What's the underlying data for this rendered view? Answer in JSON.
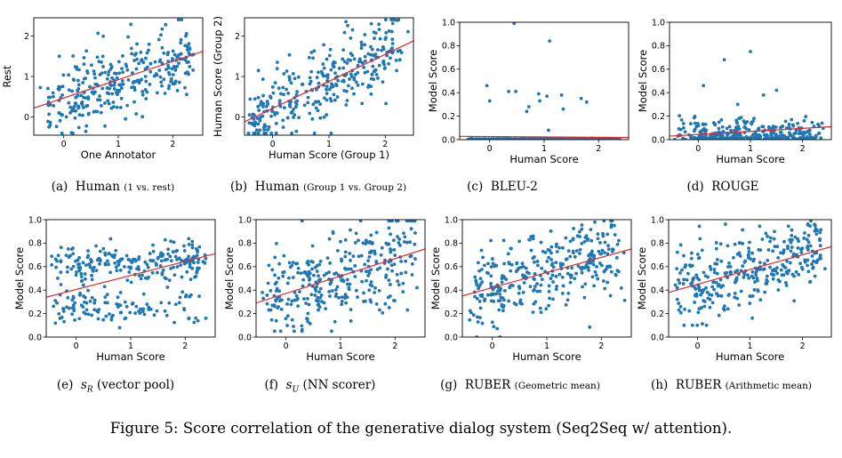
{
  "caption": "Figure 5: Score correlation of the generative dialog system (Seq2Seq w/ attention).",
  "chart_data": [
    {
      "type": "scatter",
      "id": "a",
      "caption_letter": "(a)",
      "caption_main": "Human",
      "caption_small": "(1 vs. rest)",
      "xlabel": "One Annotator",
      "ylabel": "Rest",
      "xlim": [
        -0.55,
        2.55
      ],
      "ylim": [
        -0.45,
        2.45
      ],
      "xticks": [
        0,
        1,
        2
      ],
      "yticks": [
        0,
        1,
        2
      ],
      "ytick_labels": [
        "0",
        "1",
        "2"
      ],
      "fit": [
        [
          -0.55,
          0.22
        ],
        [
          2.55,
          1.62
        ]
      ],
      "n": 320,
      "seed": 11,
      "gen": "human"
    },
    {
      "type": "scatter",
      "id": "b",
      "caption_letter": "(b)",
      "caption_main": "Human",
      "caption_small": "(Group 1 vs. Group 2)",
      "xlabel": "Human Score (Group 1)",
      "ylabel": "Human Score (Group 2)",
      "xlim": [
        -0.5,
        2.5
      ],
      "ylim": [
        -0.45,
        2.45
      ],
      "xticks": [
        0,
        1,
        2
      ],
      "yticks": [
        0,
        1,
        2
      ],
      "ytick_labels": [
        "0",
        "1",
        "2"
      ],
      "fit": [
        [
          -0.5,
          -0.12
        ],
        [
          2.5,
          1.88
        ]
      ],
      "n": 320,
      "seed": 23,
      "gen": "group"
    },
    {
      "type": "scatter",
      "id": "c",
      "caption_letter": "(c)",
      "caption_main": "BLEU-2",
      "caption_small": "",
      "xlabel": "Human Score",
      "ylabel": "Model Score",
      "xlim": [
        -0.55,
        2.55
      ],
      "ylim": [
        0.0,
        1.0
      ],
      "xticks": [
        0,
        1,
        2
      ],
      "yticks": [
        0.0,
        0.2,
        0.4,
        0.6,
        0.8,
        1.0
      ],
      "ytick_labels": [
        "0.0",
        "0.2",
        "0.4",
        "0.6",
        "0.8",
        "1.0"
      ],
      "fit": [
        [
          -0.55,
          0.028
        ],
        [
          2.55,
          0.018
        ]
      ],
      "n": 320,
      "seed": 37,
      "gen": "bleu",
      "outliers": [
        [
          0.45,
          0.99
        ],
        [
          1.1,
          0.84
        ],
        [
          -0.05,
          0.46
        ],
        [
          0.35,
          0.41
        ],
        [
          0.48,
          0.41
        ],
        [
          0.9,
          0.39
        ],
        [
          1.05,
          0.37
        ],
        [
          1.32,
          0.38
        ],
        [
          0.72,
          0.28
        ],
        [
          0.0,
          0.33
        ],
        [
          0.92,
          0.33
        ],
        [
          1.78,
          0.32
        ],
        [
          1.35,
          0.26
        ],
        [
          0.68,
          0.24
        ],
        [
          1.68,
          0.35
        ],
        [
          1.08,
          0.08
        ]
      ]
    },
    {
      "type": "scatter",
      "id": "d",
      "caption_letter": "(d)",
      "caption_main": "ROUGE",
      "caption_small": "",
      "xlabel": "Human Score",
      "ylabel": "Model Score",
      "xlim": [
        -0.55,
        2.55
      ],
      "ylim": [
        0.0,
        1.0
      ],
      "xticks": [
        0,
        1,
        2
      ],
      "yticks": [
        0.0,
        0.2,
        0.4,
        0.6,
        0.8,
        1.0
      ],
      "ytick_labels": [
        "0.0",
        "0.2",
        "0.4",
        "0.6",
        "0.8",
        "1.0"
      ],
      "fit": [
        [
          -0.55,
          0.03
        ],
        [
          2.55,
          0.11
        ]
      ],
      "n": 320,
      "seed": 51,
      "gen": "rouge",
      "outliers": [
        [
          0.5,
          0.68
        ],
        [
          1.0,
          0.75
        ],
        [
          1.5,
          0.42
        ],
        [
          0.1,
          0.46
        ],
        [
          1.25,
          0.38
        ]
      ]
    },
    {
      "type": "scatter",
      "id": "e",
      "caption_letter": "(e)",
      "caption_main": "s_R",
      "caption_small": "(vector pool)",
      "xlabel": "Human Score",
      "ylabel": "Model Score",
      "xlim": [
        -0.55,
        2.55
      ],
      "ylim": [
        0.0,
        1.0
      ],
      "xticks": [
        0,
        1,
        2
      ],
      "yticks": [
        0.0,
        0.2,
        0.4,
        0.6,
        0.8,
        1.0
      ],
      "ytick_labels": [
        "0.0",
        "0.2",
        "0.4",
        "0.6",
        "0.8",
        "1.0"
      ],
      "fit": [
        [
          -0.55,
          0.34
        ],
        [
          2.55,
          0.71
        ]
      ],
      "n": 330,
      "seed": 67,
      "gen": "vecpool"
    },
    {
      "type": "scatter",
      "id": "f",
      "caption_letter": "(f)",
      "caption_main": "s_U",
      "caption_small": "(NN scorer)",
      "xlabel": "Human Score",
      "ylabel": "Model Score",
      "xlim": [
        -0.55,
        2.55
      ],
      "ylim": [
        0.0,
        1.0
      ],
      "xticks": [
        0,
        1,
        2
      ],
      "yticks": [
        0.0,
        0.2,
        0.4,
        0.6,
        0.8,
        1.0
      ],
      "ytick_labels": [
        "0.0",
        "0.2",
        "0.4",
        "0.6",
        "0.8",
        "1.0"
      ],
      "fit": [
        [
          -0.55,
          0.29
        ],
        [
          2.55,
          0.75
        ]
      ],
      "n": 330,
      "seed": 79,
      "gen": "nn"
    },
    {
      "type": "scatter",
      "id": "g",
      "caption_letter": "(g)",
      "caption_main": "RUBER",
      "caption_small": "(Geometric mean)",
      "xlabel": "Human Score",
      "ylabel": "Model Score",
      "xlim": [
        -0.55,
        2.55
      ],
      "ylim": [
        0.0,
        1.0
      ],
      "xticks": [
        0,
        1,
        2
      ],
      "yticks": [
        0.0,
        0.2,
        0.4,
        0.6,
        0.8,
        1.0
      ],
      "ytick_labels": [
        "0.0",
        "0.2",
        "0.4",
        "0.6",
        "0.8",
        "1.0"
      ],
      "fit": [
        [
          -0.55,
          0.35
        ],
        [
          2.55,
          0.75
        ]
      ],
      "n": 330,
      "seed": 83,
      "gen": "ruber"
    },
    {
      "type": "scatter",
      "id": "h",
      "caption_letter": "(h)",
      "caption_main": "RUBER",
      "caption_small": "(Arithmetic mean)",
      "xlabel": "Human Score",
      "ylabel": "Model Score",
      "xlim": [
        -0.55,
        2.55
      ],
      "ylim": [
        0.0,
        1.0
      ],
      "xticks": [
        0,
        1,
        2
      ],
      "yticks": [
        0.0,
        0.2,
        0.4,
        0.6,
        0.8,
        1.0
      ],
      "ytick_labels": [
        "0.0",
        "0.2",
        "0.4",
        "0.6",
        "0.8",
        "1.0"
      ],
      "fit": [
        [
          -0.55,
          0.38
        ],
        [
          2.55,
          0.77
        ]
      ],
      "n": 330,
      "seed": 97,
      "gen": "ruber2"
    }
  ],
  "colors": {
    "point": "#1f77b4",
    "fit": "#e8272b",
    "axis": "#000000"
  }
}
